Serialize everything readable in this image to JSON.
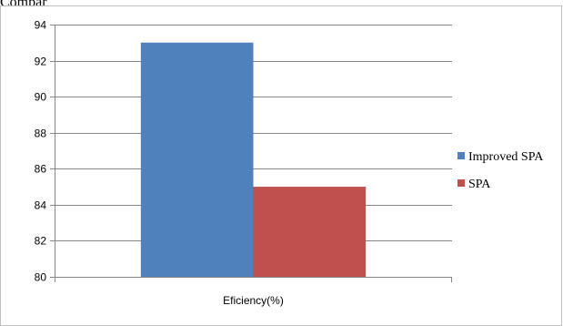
{
  "page": {
    "top_text": "Compar"
  },
  "chart_data": {
    "type": "bar",
    "categories": [
      "Eficiency(%)"
    ],
    "series": [
      {
        "name": "Improved SPA",
        "values": [
          93
        ],
        "color": "#4f81bd"
      },
      {
        "name": "SPA",
        "values": [
          85
        ],
        "color": "#c0504d"
      }
    ],
    "title": "",
    "xlabel": "",
    "ylabel": "",
    "ylim": [
      80,
      94
    ],
    "yticks": [
      80,
      82,
      84,
      86,
      88,
      90,
      92,
      94
    ],
    "grid": true,
    "legend_position": "right"
  }
}
